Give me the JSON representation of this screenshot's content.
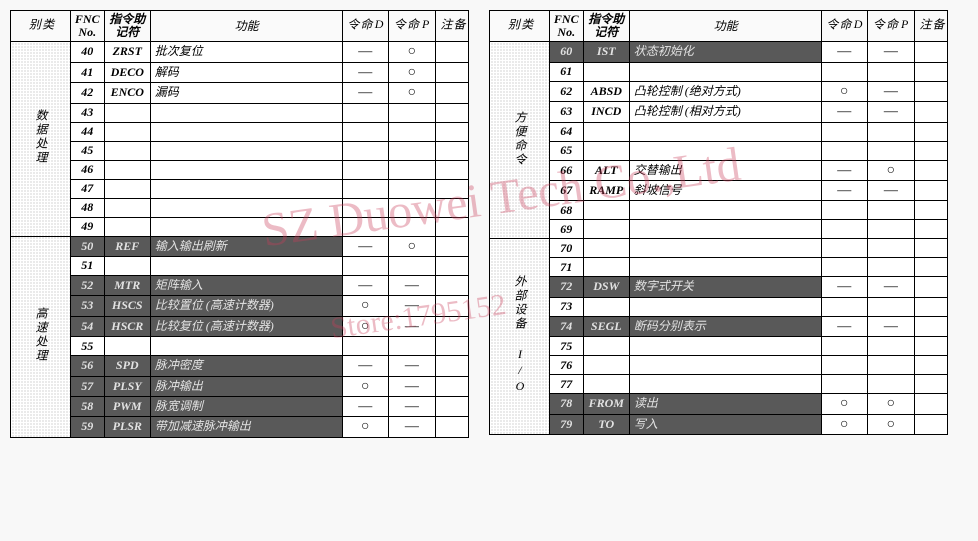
{
  "watermark_line1": "SZ Duowei Tech Co.,Ltd",
  "watermark_line2": "Store:1795152",
  "headers": {
    "category": "类别",
    "fnc": "FNC No.",
    "mnemonic": "指令助记符",
    "function": "功能",
    "d": "D 命令",
    "p": "P 命令",
    "remark": "备注"
  },
  "marks": {
    "dash": "—",
    "circle": "○"
  },
  "left": {
    "groups": [
      {
        "category": "数据处理",
        "rows": [
          {
            "fnc": "40",
            "mn": "ZRST",
            "fn": "批次复位",
            "d": "—",
            "p": "○",
            "hl": false
          },
          {
            "fnc": "41",
            "mn": "DECO",
            "fn": "解码",
            "d": "—",
            "p": "○",
            "hl": false
          },
          {
            "fnc": "42",
            "mn": "ENCO",
            "fn": "漏码",
            "d": "—",
            "p": "○",
            "hl": false
          },
          {
            "fnc": "43",
            "mn": "",
            "fn": "",
            "d": "",
            "p": "",
            "hl": false
          },
          {
            "fnc": "44",
            "mn": "",
            "fn": "",
            "d": "",
            "p": "",
            "hl": false
          },
          {
            "fnc": "45",
            "mn": "",
            "fn": "",
            "d": "",
            "p": "",
            "hl": false
          },
          {
            "fnc": "46",
            "mn": "",
            "fn": "",
            "d": "",
            "p": "",
            "hl": false
          },
          {
            "fnc": "47",
            "mn": "",
            "fn": "",
            "d": "",
            "p": "",
            "hl": false
          },
          {
            "fnc": "48",
            "mn": "",
            "fn": "",
            "d": "",
            "p": "",
            "hl": false
          },
          {
            "fnc": "49",
            "mn": "",
            "fn": "",
            "d": "",
            "p": "",
            "hl": false
          }
        ]
      },
      {
        "category": "高速处理",
        "rows": [
          {
            "fnc": "50",
            "mn": "REF",
            "fn": "输入输出刷新",
            "d": "—",
            "p": "○",
            "hl": true
          },
          {
            "fnc": "51",
            "mn": "",
            "fn": "",
            "d": "",
            "p": "",
            "hl": false
          },
          {
            "fnc": "52",
            "mn": "MTR",
            "fn": "矩阵输入",
            "d": "—",
            "p": "—",
            "hl": true
          },
          {
            "fnc": "53",
            "mn": "HSCS",
            "fn": "比较置位 (高速计数器)",
            "d": "○",
            "p": "—",
            "hl": true
          },
          {
            "fnc": "54",
            "mn": "HSCR",
            "fn": "比较复位 (高速计数器)",
            "d": "○",
            "p": "—",
            "hl": true
          },
          {
            "fnc": "55",
            "mn": "",
            "fn": "",
            "d": "",
            "p": "",
            "hl": false
          },
          {
            "fnc": "56",
            "mn": "SPD",
            "fn": "脉冲密度",
            "d": "—",
            "p": "—",
            "hl": true
          },
          {
            "fnc": "57",
            "mn": "PLSY",
            "fn": "脉冲输出",
            "d": "○",
            "p": "—",
            "hl": true
          },
          {
            "fnc": "58",
            "mn": "PWM",
            "fn": "脉宽调制",
            "d": "—",
            "p": "—",
            "hl": true
          },
          {
            "fnc": "59",
            "mn": "PLSR",
            "fn": "带加减速脉冲输出",
            "d": "○",
            "p": "—",
            "hl": true
          }
        ]
      }
    ]
  },
  "right": {
    "groups": [
      {
        "category": "方便命令",
        "rows": [
          {
            "fnc": "60",
            "mn": "IST",
            "fn": "状态初始化",
            "d": "—",
            "p": "—",
            "hl": true
          },
          {
            "fnc": "61",
            "mn": "",
            "fn": "",
            "d": "",
            "p": "",
            "hl": false
          },
          {
            "fnc": "62",
            "mn": "ABSD",
            "fn": "凸轮控制 (绝对方式)",
            "d": "○",
            "p": "—",
            "hl": false
          },
          {
            "fnc": "63",
            "mn": "INCD",
            "fn": "凸轮控制 (相对方式)",
            "d": "—",
            "p": "—",
            "hl": false
          },
          {
            "fnc": "64",
            "mn": "",
            "fn": "",
            "d": "",
            "p": "",
            "hl": false
          },
          {
            "fnc": "65",
            "mn": "",
            "fn": "",
            "d": "",
            "p": "",
            "hl": false
          },
          {
            "fnc": "66",
            "mn": "ALT",
            "fn": "交替输出",
            "d": "—",
            "p": "○",
            "hl": false
          },
          {
            "fnc": "67",
            "mn": "RAMP",
            "fn": "斜坡信号",
            "d": "—",
            "p": "—",
            "hl": false
          },
          {
            "fnc": "68",
            "mn": "",
            "fn": "",
            "d": "",
            "p": "",
            "hl": false
          },
          {
            "fnc": "69",
            "mn": "",
            "fn": "",
            "d": "",
            "p": "",
            "hl": false
          }
        ]
      },
      {
        "category": "外部设备 I/O",
        "rows": [
          {
            "fnc": "70",
            "mn": "",
            "fn": "",
            "d": "",
            "p": "",
            "hl": false
          },
          {
            "fnc": "71",
            "mn": "",
            "fn": "",
            "d": "",
            "p": "",
            "hl": false
          },
          {
            "fnc": "72",
            "mn": "DSW",
            "fn": "数字式开关",
            "d": "—",
            "p": "—",
            "hl": true
          },
          {
            "fnc": "73",
            "mn": "",
            "fn": "",
            "d": "",
            "p": "",
            "hl": false
          },
          {
            "fnc": "74",
            "mn": "SEGL",
            "fn": "断码分别表示",
            "d": "—",
            "p": "—",
            "hl": true
          },
          {
            "fnc": "75",
            "mn": "",
            "fn": "",
            "d": "",
            "p": "",
            "hl": false
          },
          {
            "fnc": "76",
            "mn": "",
            "fn": "",
            "d": "",
            "p": "",
            "hl": false
          },
          {
            "fnc": "77",
            "mn": "",
            "fn": "",
            "d": "",
            "p": "",
            "hl": false
          },
          {
            "fnc": "78",
            "mn": "FROM",
            "fn": "读出",
            "d": "○",
            "p": "○",
            "hl": true
          },
          {
            "fnc": "79",
            "mn": "TO",
            "fn": "写入",
            "d": "○",
            "p": "○",
            "hl": true
          }
        ]
      }
    ]
  }
}
